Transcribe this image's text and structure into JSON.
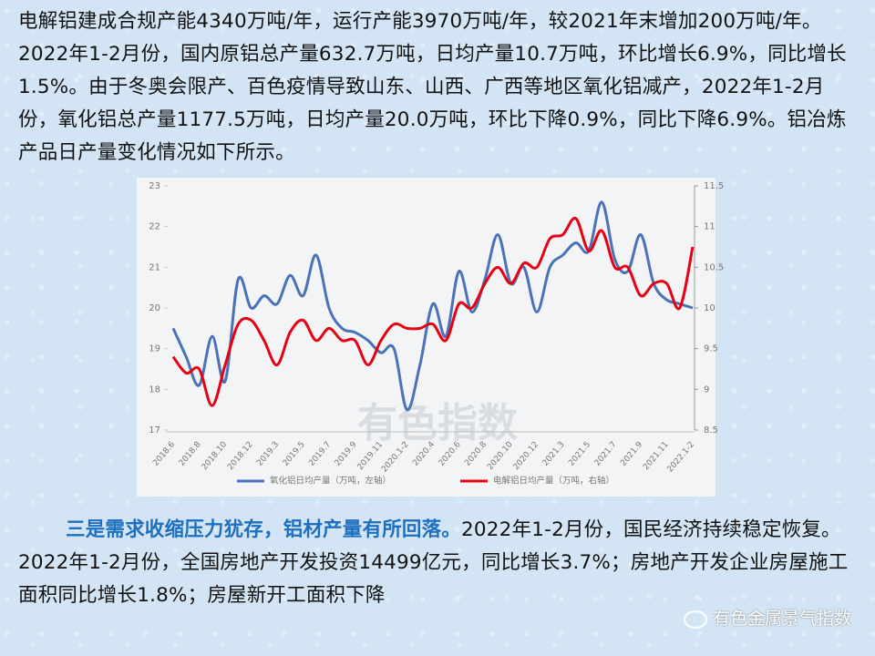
{
  "paragraphs": [
    "电解铝建成合规产能4340万吨/年，运行产能3970万吨/年，较2021年末增加200万吨/年。2022年1-2月份，国内原铝总产量632.7万吨，日均产量10.7万吨，环比增长6.9%，同比增长1.5%。由于冬奥会限产、百色疫情导致山东、山西、广西等地区氧化铝减产，2022年1-2月份，氧化铝总产量1177.5万吨，日均产量20.0万吨，环比下降0.9%，同比下降6.9%。铝冶炼产品日产量变化情况如下所示。",
    {
      "lead": "三是需求收缩压力犹存，铝材产量有所回落。",
      "text": "2022年1-2月份，国民经济持续稳定恢复。2022年1-2月份，全国房地产开发投资14499亿元，同比增长3.7%；房地产开发企业房屋施工面积同比增长1.8%；房屋新开工面积下降"
    }
  ],
  "chart_data": {
    "type": "line",
    "watermark": "有色指数",
    "categories": [
      "2018.6",
      null,
      "2018.8",
      null,
      "2018.10",
      null,
      "2018.12",
      null,
      "2019.3",
      null,
      "2019.5",
      null,
      "2019.7",
      null,
      "2019.9",
      null,
      "2019.11",
      null,
      "2020.1-2",
      null,
      "2020.4",
      null,
      "2020.6",
      null,
      "2020.8",
      null,
      "2020.10",
      null,
      "2020.12",
      null,
      "2021.3",
      null,
      "2021.5",
      null,
      "2021.7",
      null,
      "2021.9",
      null,
      "2021.11",
      null,
      "2022.1-2"
    ],
    "series": [
      {
        "name": "氧化铝日均产量（万吨，左轴）",
        "color": "#4a72b8",
        "values": [
          19.5,
          18.8,
          18.1,
          19.3,
          18.2,
          20.7,
          20.0,
          20.3,
          20.1,
          20.8,
          20.3,
          21.3,
          20.0,
          19.5,
          19.4,
          19.2,
          18.9,
          19.0,
          17.5,
          18.6,
          20.1,
          19.3,
          20.9,
          19.9,
          20.7,
          21.8,
          20.6,
          21.0,
          19.9,
          21.0,
          21.3,
          21.6,
          21.4,
          22.6,
          21.2,
          20.9,
          21.8,
          20.6,
          20.2,
          20.1,
          20.0
        ]
      },
      {
        "name": "电解铝日均产量（万吨，右轴）",
        "color": "#e60012",
        "axis": "y2",
        "values": [
          9.4,
          9.2,
          9.25,
          8.8,
          9.3,
          9.8,
          9.85,
          9.6,
          9.3,
          9.7,
          9.85,
          9.6,
          9.75,
          9.6,
          9.6,
          9.3,
          9.6,
          9.8,
          9.75,
          9.75,
          9.8,
          9.6,
          10.05,
          10.0,
          10.3,
          10.5,
          10.3,
          10.55,
          10.5,
          10.85,
          10.9,
          11.1,
          10.7,
          10.95,
          10.5,
          10.5,
          10.15,
          10.3,
          10.3,
          10.0,
          10.75
        ]
      }
    ],
    "ylim": [
      17,
      23
    ],
    "yticks": [
      17,
      18,
      19,
      20,
      21,
      22,
      23
    ],
    "y2lim": [
      8.5,
      11.5
    ],
    "y2ticks": [
      8.5,
      9,
      9.5,
      10,
      10.5,
      11,
      11.5
    ]
  },
  "watermark": "有色金属景气指数"
}
